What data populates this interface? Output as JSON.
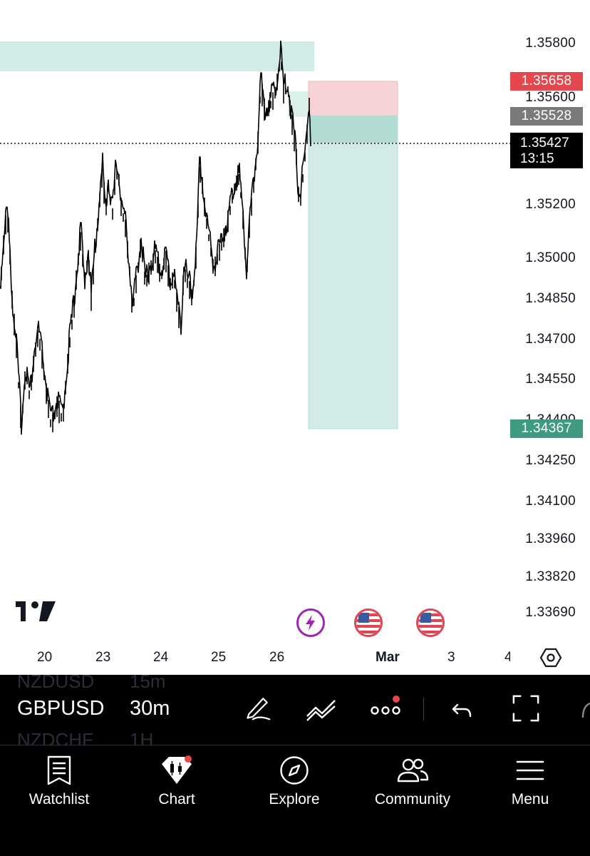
{
  "chart": {
    "symbol": "GBPUSD",
    "interval": "30m",
    "ghost_symbols": [
      "NZDUSD",
      "NZDCHF"
    ],
    "ghost_intervals": [
      "15m",
      "1H"
    ],
    "price_axis": [
      "1.35800",
      "1.35600",
      "1.35200",
      "1.35000",
      "1.34850",
      "1.34700",
      "1.34550",
      "1.34400",
      "1.34250",
      "1.34100",
      "1.33960",
      "1.33820",
      "1.33690"
    ],
    "date_axis": [
      "20",
      "23",
      "24",
      "25",
      "26",
      "Mar",
      "3",
      "4"
    ],
    "stop_price": "1.35658",
    "entry_price": "1.35528",
    "current_price": "1.35427",
    "countdown": "13:15",
    "target_price": "1.34367",
    "colors": {
      "stop_tag": "#e5474f",
      "entry_tag": "#7a7a7a",
      "target_tag": "#3f9a82",
      "profit_zone": "#d2ebe6",
      "loss_zone": "#f7d3d8",
      "event_ring": "#e04553",
      "flash_ring": "#9c27b0"
    },
    "event_icons": [
      "lightning-icon",
      "us-flag-icon",
      "us-flag-icon"
    ],
    "logo": "tradingview-logo"
  },
  "toolbar": {
    "icons": [
      "pen-icon",
      "indicator-icon",
      "more-icon",
      "undo-icon",
      "fullscreen-icon"
    ]
  },
  "tabs": [
    {
      "label": "Watchlist",
      "icon": "watchlist-icon"
    },
    {
      "label": "Chart",
      "icon": "chart-icon"
    },
    {
      "label": "Explore",
      "icon": "compass-icon"
    },
    {
      "label": "Community",
      "icon": "community-icon"
    },
    {
      "label": "Menu",
      "icon": "menu-icon"
    }
  ]
}
